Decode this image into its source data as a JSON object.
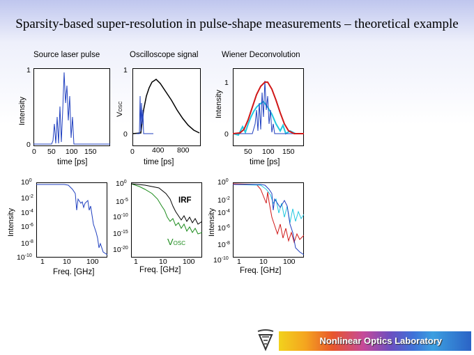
{
  "title": "Sparsity-based super-resolution in pulse-shape measurements – theoretical example",
  "panels": {
    "source": {
      "label": "Source laser pulse",
      "ylabel": "Intensity",
      "xlabel": "time [ps]",
      "yticks": [
        "1",
        "0"
      ],
      "xticks": [
        "0",
        "50",
        "100",
        "150"
      ]
    },
    "osc": {
      "label": "Oscilloscope signal",
      "ylabel": "V",
      "ylabel_sub": "OSC",
      "xlabel": "time [ps]",
      "yticks": [
        "1",
        "0"
      ],
      "xticks": [
        "0",
        "400",
        "800"
      ]
    },
    "wiener": {
      "label": "Wiener Deconvolution",
      "ylabel": "Intensity",
      "xlabel": "time [ps]",
      "yticks": [
        "1",
        "0"
      ],
      "xticks": [
        "50",
        "100",
        "150"
      ]
    },
    "spec1": {
      "ylabel": "Intensity",
      "xlabel": "Freq. [GHz]",
      "xticks": [
        "1",
        "10",
        "100"
      ],
      "yexp": [
        "0",
        "-2",
        "-4",
        "-6",
        "-8",
        "-10"
      ]
    },
    "spec2": {
      "xlabel": "Freq. [GHz]",
      "xticks": [
        "1",
        "10",
        "100"
      ],
      "yexp": [
        "0",
        "-5",
        "-10",
        "-15",
        "-20"
      ],
      "annotation_irf": "IRF",
      "annotation_v": "V",
      "annotation_v_sub": "OSC"
    },
    "spec3": {
      "ylabel": "Intensity",
      "xlabel": "Freq. [GHz]",
      "xticks": [
        "1",
        "10",
        "100"
      ],
      "yexp": [
        "0",
        "-2",
        "-4",
        "-6",
        "-8",
        "-10"
      ]
    }
  },
  "tick_base": "10",
  "footer": "Nonlinear Optics Laboratory",
  "colors": {
    "blue": "#1f3fbf",
    "red": "#d01818",
    "cyan": "#22c8e0",
    "green": "#1a8a1a",
    "black": "#000000"
  }
}
